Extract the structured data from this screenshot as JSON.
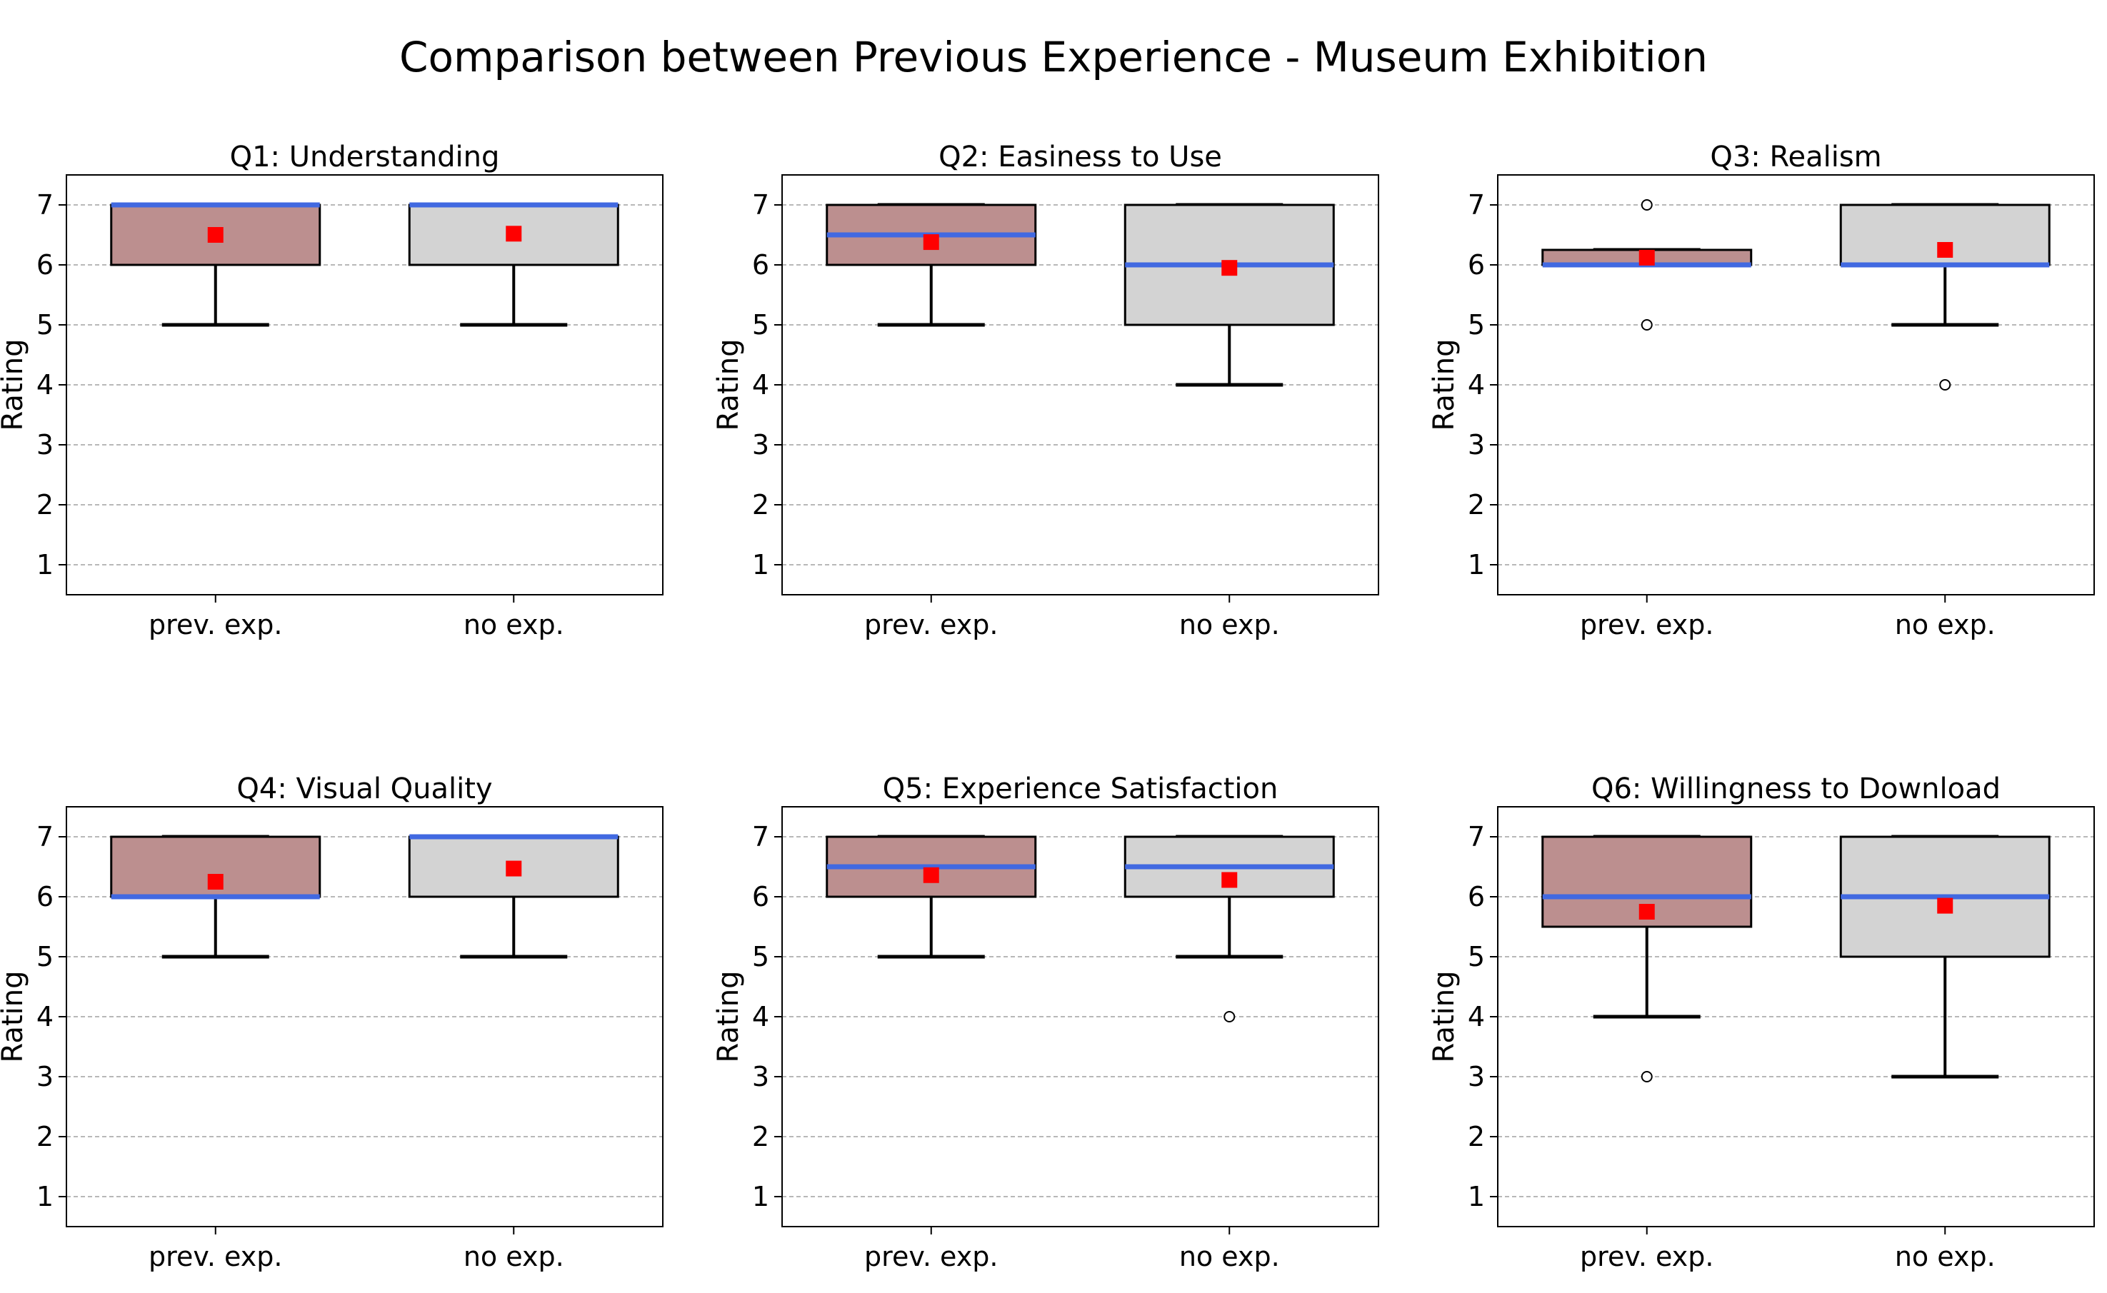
{
  "title": "Comparison between Previous Experience - Museum Exhibition",
  "colors": {
    "prev_box": "#bc8f8f",
    "no_box": "#d3d3d3",
    "median": "#4169e1",
    "mean": "#ff0000",
    "grid": "#a0a0a0"
  },
  "chart_data": [
    {
      "type": "box",
      "title": "Q1: Understanding",
      "ylabel": "Rating",
      "categories": [
        "prev. exp.",
        "no exp."
      ],
      "yticks": [
        1,
        2,
        3,
        4,
        5,
        6,
        7
      ],
      "ylim": [
        0.5,
        7.5
      ],
      "grid": true,
      "boxes": [
        {
          "q1": 6,
          "median": 7,
          "q3": 7,
          "whislo": 5,
          "whishi": 7,
          "mean": 6.5,
          "fliers": []
        },
        {
          "q1": 6,
          "median": 7,
          "q3": 7,
          "whislo": 5,
          "whishi": 7,
          "mean": 6.52,
          "fliers": []
        }
      ]
    },
    {
      "type": "box",
      "title": "Q2: Easiness to Use",
      "ylabel": "Rating",
      "categories": [
        "prev. exp.",
        "no exp."
      ],
      "yticks": [
        1,
        2,
        3,
        4,
        5,
        6,
        7
      ],
      "ylim": [
        0.5,
        7.5
      ],
      "grid": true,
      "boxes": [
        {
          "q1": 6,
          "median": 6.5,
          "q3": 7,
          "whislo": 5,
          "whishi": 7,
          "mean": 6.38,
          "fliers": []
        },
        {
          "q1": 5,
          "median": 6,
          "q3": 7,
          "whislo": 4,
          "whishi": 7,
          "mean": 5.95,
          "fliers": []
        }
      ]
    },
    {
      "type": "box",
      "title": "Q3: Realism",
      "ylabel": "Rating",
      "categories": [
        "prev. exp.",
        "no exp."
      ],
      "yticks": [
        1,
        2,
        3,
        4,
        5,
        6,
        7
      ],
      "ylim": [
        0.5,
        7.5
      ],
      "grid": true,
      "boxes": [
        {
          "q1": 6,
          "median": 6,
          "q3": 6.25,
          "whislo": 6,
          "whishi": 6.25,
          "mean": 6.12,
          "fliers": [
            7,
            5
          ]
        },
        {
          "q1": 6,
          "median": 6,
          "q3": 7,
          "whislo": 5,
          "whishi": 7,
          "mean": 6.25,
          "fliers": [
            4
          ]
        }
      ]
    },
    {
      "type": "box",
      "title": "Q4: Visual Quality",
      "ylabel": "Rating",
      "categories": [
        "prev. exp.",
        "no exp."
      ],
      "yticks": [
        1,
        2,
        3,
        4,
        5,
        6,
        7
      ],
      "ylim": [
        0.5,
        7.5
      ],
      "grid": true,
      "boxes": [
        {
          "q1": 6,
          "median": 6,
          "q3": 7,
          "whislo": 5,
          "whishi": 7,
          "mean": 6.25,
          "fliers": []
        },
        {
          "q1": 6,
          "median": 7,
          "q3": 7,
          "whislo": 5,
          "whishi": 7,
          "mean": 6.47,
          "fliers": []
        }
      ]
    },
    {
      "type": "box",
      "title": "Q5: Experience Satisfaction",
      "ylabel": "Rating",
      "categories": [
        "prev. exp.",
        "no exp."
      ],
      "yticks": [
        1,
        2,
        3,
        4,
        5,
        6,
        7
      ],
      "ylim": [
        0.5,
        7.5
      ],
      "grid": true,
      "boxes": [
        {
          "q1": 6,
          "median": 6.5,
          "q3": 7,
          "whislo": 5,
          "whishi": 7,
          "mean": 6.36,
          "fliers": []
        },
        {
          "q1": 6,
          "median": 6.5,
          "q3": 7,
          "whislo": 5,
          "whishi": 7,
          "mean": 6.28,
          "fliers": [
            4
          ]
        }
      ]
    },
    {
      "type": "box",
      "title": "Q6: Willingness to Download",
      "ylabel": "Rating",
      "categories": [
        "prev. exp.",
        "no exp."
      ],
      "yticks": [
        1,
        2,
        3,
        4,
        5,
        6,
        7
      ],
      "ylim": [
        0.5,
        7.5
      ],
      "grid": true,
      "boxes": [
        {
          "q1": 5.5,
          "median": 6,
          "q3": 7,
          "whislo": 4,
          "whishi": 7,
          "mean": 5.75,
          "fliers": [
            3
          ]
        },
        {
          "q1": 5,
          "median": 6,
          "q3": 7,
          "whislo": 3,
          "whishi": 7,
          "mean": 5.85,
          "fliers": []
        }
      ]
    }
  ]
}
